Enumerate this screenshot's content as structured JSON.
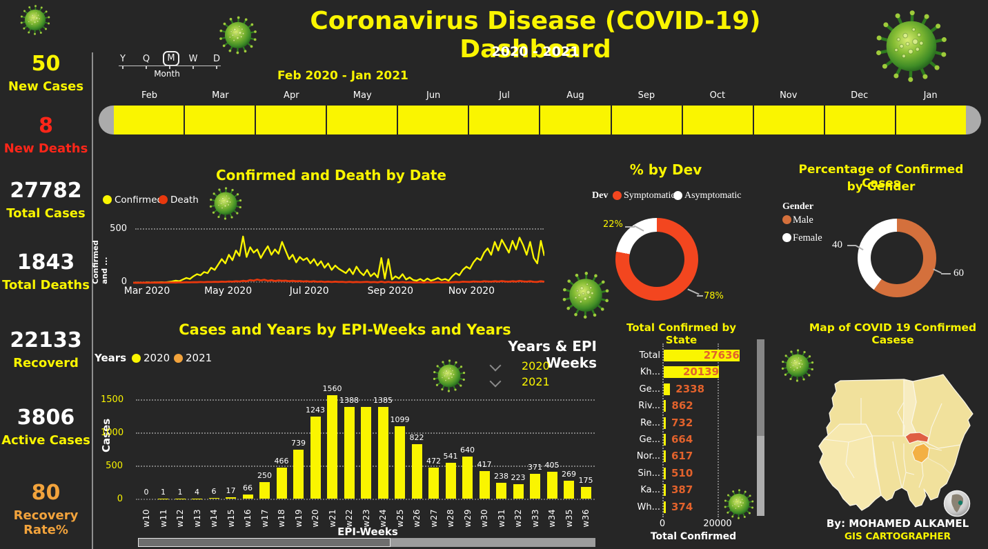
{
  "header": {
    "title": "Coronavirus Disease (COVID-19) Dashboard",
    "subtitle": "2020 - 2021"
  },
  "colors": {
    "background": "#262626",
    "accent_yellow": "#FAF500",
    "kpi_red": "#FF2619",
    "orange": "#F2A33C",
    "death_red": "#E8380D",
    "symptomatic_red": "#F3461F",
    "male_orange": "#D4703C",
    "state_value_orange": "#E2622C",
    "map_state_default": "#F1E19C",
    "map_state_red": "#DF5F43",
    "map_state_orange": "#F3B043"
  },
  "sidebar": {
    "kpis": [
      {
        "value": "50",
        "label": "New Cases",
        "value_color": "#FAF500",
        "label_color": "#FAF500"
      },
      {
        "value": "8",
        "label": "New Deaths",
        "value_color": "#FF2619",
        "label_color": "#FF2619"
      },
      {
        "value": "27782",
        "label": "Total Cases",
        "value_color": "#FFFFFF",
        "label_color": "#FAF500"
      },
      {
        "value": "1843",
        "label": "Total Deaths",
        "value_color": "#FFFFFF",
        "label_color": "#FAF500"
      },
      {
        "value": "22133",
        "label": "Recoverd",
        "value_color": "#FFFFFF",
        "label_color": "#FAF500"
      },
      {
        "value": "3806",
        "label": "Active Cases",
        "value_color": "#FFFFFF",
        "label_color": "#FAF500"
      },
      {
        "value": "80",
        "label": "Recovery Rate%",
        "value_color": "#F2A33C",
        "label_color": "#F2A33C"
      }
    ]
  },
  "timeline": {
    "granularity_options": [
      "Y",
      "Q",
      "M",
      "W",
      "D"
    ],
    "selected_granularity": "M",
    "selected_label": "Month",
    "range_label": "Feb 2020 - Jan 2021",
    "months": [
      "Feb",
      "Mar",
      "Apr",
      "May",
      "Jun",
      "Jul",
      "Aug",
      "Sep",
      "Oct",
      "Nov",
      "Dec",
      "Jan"
    ],
    "bar_color": "#FAF500"
  },
  "slicer_years": {
    "title": "Years & EPI Weeks",
    "items": [
      "2020",
      "2021"
    ]
  },
  "map_panel": {
    "title": "Map of COVID 19 Confirmed Casese",
    "credit_by": "By: MOHAMED ALKAMEL",
    "credit_role": "GIS CARTOGRAPHER"
  },
  "chart_data": [
    {
      "type": "line",
      "title": "Confirmed and Death by Date",
      "ylabel": "Confirmed and ...",
      "ylim": [
        0,
        500
      ],
      "y_ticks": [
        0,
        500
      ],
      "x_ticks": [
        "Mar 2020",
        "May 2020",
        "Jul 2020",
        "Sep 2020",
        "Nov 2020"
      ],
      "legend": [
        {
          "label": "Confirmed",
          "color": "#FAF500"
        },
        {
          "label": "Death",
          "color": "#E8380D"
        }
      ],
      "series": [
        {
          "name": "Confirmed",
          "color": "#FAF500",
          "values": [
            1,
            0,
            2,
            1,
            3,
            2,
            4,
            3,
            5,
            4,
            8,
            12,
            20,
            15,
            30,
            45,
            35,
            60,
            80,
            70,
            100,
            90,
            140,
            120,
            170,
            220,
            180,
            260,
            210,
            300,
            250,
            430,
            240,
            330,
            280,
            310,
            230,
            290,
            340,
            260,
            310,
            270,
            380,
            300,
            220,
            260,
            190,
            240,
            210,
            230,
            180,
            220,
            160,
            200,
            140,
            180,
            120,
            160,
            130,
            110,
            90,
            130,
            80,
            150,
            100,
            70,
            120,
            60,
            90,
            50,
            230,
            40,
            220,
            30,
            60,
            40,
            80,
            30,
            50,
            25,
            20,
            35,
            15,
            40,
            20,
            30,
            45,
            25,
            35,
            20,
            60,
            90,
            70,
            120,
            150,
            130,
            190,
            230,
            210,
            280,
            320,
            260,
            380,
            300,
            400,
            340,
            280,
            390,
            310,
            420,
            350,
            260,
            380,
            230,
            180,
            390,
            250
          ]
        },
        {
          "name": "Death",
          "color": "#E8380D",
          "values": [
            0,
            0,
            0,
            1,
            0,
            1,
            1,
            2,
            1,
            2,
            2,
            3,
            2,
            4,
            3,
            5,
            4,
            6,
            5,
            7,
            6,
            8,
            7,
            9,
            8,
            10,
            9,
            12,
            10,
            14,
            12,
            18,
            14,
            25,
            20,
            30,
            22,
            28,
            18,
            24,
            16,
            22,
            18,
            20,
            15,
            18,
            14,
            16,
            12,
            15,
            10,
            14,
            9,
            12,
            8,
            11,
            7,
            10,
            8,
            9,
            6,
            9,
            5,
            8,
            6,
            7,
            9,
            5,
            7,
            4,
            10,
            4,
            9,
            3,
            6,
            4,
            7,
            3,
            5,
            3,
            3,
            5,
            2,
            6,
            3,
            4,
            6,
            3,
            5,
            3,
            5,
            8,
            6,
            10,
            9,
            8,
            12,
            10,
            9,
            14,
            12,
            10,
            15,
            11,
            16,
            12,
            10,
            15,
            11,
            17,
            13,
            10,
            14,
            9,
            8,
            15,
            10
          ]
        }
      ]
    },
    {
      "type": "donut",
      "title": "% by Dev",
      "legend_title": "Dev",
      "slices": [
        {
          "label": "Symptomatic",
          "value": 78,
          "color": "#F3461F",
          "data_label": "78%"
        },
        {
          "label": "Asymptomatic",
          "value": 22,
          "color": "#FFFFFF",
          "data_label": "22%"
        }
      ]
    },
    {
      "type": "donut",
      "title": "Percentage of Confirmed Cases by Gender",
      "title_lines": [
        "Percentage of Confirmed Cases",
        "by Gender"
      ],
      "legend_title": "Gender",
      "slices": [
        {
          "label": "Male",
          "value": 60,
          "color": "#D4703C",
          "data_label": "60"
        },
        {
          "label": "Female",
          "value": 40,
          "color": "#FFFFFF",
          "data_label": "40"
        }
      ]
    },
    {
      "type": "bar",
      "title": "Cases and Years by EPI-Weeks and Years",
      "xlabel": "EPI-Weeks",
      "ylabel": "Cases",
      "ylim": [
        0,
        1600
      ],
      "y_ticks": [
        0,
        500,
        1000,
        1500
      ],
      "legend_title": "Years",
      "legend": [
        {
          "label": "2020",
          "color": "#FAF500"
        },
        {
          "label": "2021",
          "color": "#F2A33C"
        }
      ],
      "categories": [
        "w10",
        "w11",
        "w12",
        "w13",
        "w14",
        "w15",
        "w16",
        "w17",
        "w18",
        "w19",
        "w20",
        "w21",
        "w22",
        "w23",
        "w24",
        "w25",
        "w26",
        "w27",
        "w28",
        "w29",
        "w30",
        "w31",
        "w32",
        "w33",
        "w34",
        "w35",
        "w36"
      ],
      "values": [
        0,
        1,
        1,
        4,
        6,
        17,
        66,
        250,
        466,
        739,
        1243,
        1560,
        1388,
        1386,
        1385,
        1099,
        822,
        472,
        541,
        640,
        417,
        238,
        223,
        371,
        405,
        269,
        175
      ],
      "data_labels": [
        "0",
        "1",
        "1",
        "4",
        "6",
        "17",
        "66",
        "250",
        "466",
        "739",
        "1243",
        "1560",
        "1388",
        "",
        "1385",
        "1099",
        "822",
        "472",
        "541",
        "640",
        "417",
        "238",
        "223",
        "371",
        "405",
        "269",
        "175"
      ]
    },
    {
      "type": "bar_horizontal",
      "title": "Total Confirmed by State",
      "xlabel": "Total Confirmed",
      "x_ticks": [
        "0",
        "20000"
      ],
      "bar_color": "#FAF500",
      "value_color": "#E2622C",
      "categories": [
        "Total",
        "Kh...",
        "Ge...",
        "Riv...",
        "Re...",
        "Ge...",
        "Nor...",
        "Sin...",
        "Ka...",
        "Wh..."
      ],
      "values": [
        27636,
        20139,
        2338,
        862,
        732,
        664,
        617,
        510,
        387,
        374
      ]
    }
  ]
}
